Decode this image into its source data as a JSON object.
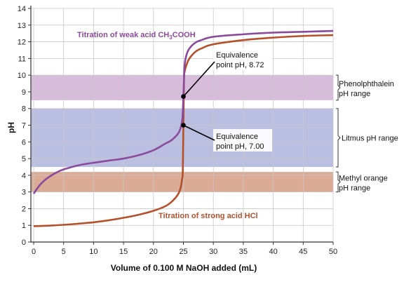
{
  "chart_data": {
    "type": "line",
    "xlabel": "Volume of 0.100 M NaOH added (mL)",
    "ylabel": "pH",
    "xlim": [
      0,
      50
    ],
    "ylim": [
      0,
      14
    ],
    "xticks": [
      "0",
      "5",
      "10",
      "15",
      "20",
      "25",
      "30",
      "35",
      "40",
      "45",
      "50"
    ],
    "yticks": [
      "0",
      "1",
      "2",
      "3",
      "4",
      "5",
      "6",
      "7",
      "8",
      "9",
      "10",
      "11",
      "12",
      "13",
      "14"
    ],
    "grid": true,
    "colors": {
      "weak": "#8b4a9c",
      "strong": "#b5502a",
      "phenol_band": "#c9a6cf",
      "litmus_band": "#a3aad8",
      "methyl_band": "#cf8f73",
      "grid": "#c8c8c8",
      "axis": "#333333"
    },
    "ranges": [
      {
        "id": "phenolphthalein",
        "label_line1": "Phenolphthalein",
        "label_line2": "pH range",
        "low": 8.5,
        "high": 10
      },
      {
        "id": "litmus",
        "label_line1": "Litmus pH range",
        "label_line2": "",
        "low": 4.5,
        "high": 8
      },
      {
        "id": "methyl",
        "label_line1": "Methyl orange",
        "label_line2": "pH range",
        "low": 3,
        "high": 4.2
      }
    ],
    "series": [
      {
        "id": "weak",
        "label_main": "Titration of weak acid CH",
        "label_sub": "3",
        "label_tail": "COOH",
        "x": [
          0,
          1,
          2,
          3,
          4,
          5,
          7.5,
          10,
          12.5,
          15,
          17.5,
          20,
          22,
          23,
          24,
          24.5,
          24.8,
          24.9,
          25,
          25.1,
          25.2,
          25.5,
          26,
          27,
          28,
          30,
          35,
          40,
          45,
          50
        ],
        "y": [
          2.9,
          3.4,
          3.75,
          4.0,
          4.2,
          4.35,
          4.6,
          4.75,
          4.88,
          5.0,
          5.2,
          5.5,
          5.9,
          6.1,
          6.45,
          6.8,
          7.3,
          7.8,
          8.72,
          9.8,
          10.6,
          11.2,
          11.6,
          11.95,
          12.1,
          12.3,
          12.45,
          12.55,
          12.6,
          12.65
        ]
      },
      {
        "id": "strong",
        "label_main": "Titration of strong acid HCl",
        "label_sub": "",
        "label_tail": "",
        "x": [
          0,
          2.5,
          5,
          7.5,
          10,
          12.5,
          15,
          17.5,
          20,
          22,
          23,
          24,
          24.5,
          24.8,
          24.9,
          25,
          25.1,
          25.2,
          25.5,
          26,
          27,
          28,
          30,
          35,
          40,
          45,
          50
        ],
        "y": [
          0.95,
          0.98,
          1.03,
          1.1,
          1.18,
          1.3,
          1.45,
          1.63,
          1.87,
          2.15,
          2.4,
          2.8,
          3.2,
          3.8,
          4.3,
          7.0,
          9.7,
          10.2,
          10.6,
          11.0,
          11.4,
          11.6,
          11.85,
          12.1,
          12.25,
          12.35,
          12.4
        ]
      }
    ],
    "annotations": [
      {
        "id": "eq-weak",
        "line1": "Equivalence",
        "line2": "point pH, 8.72",
        "x": 25,
        "y": 8.72
      },
      {
        "id": "eq-strong",
        "line1": "Equivalence",
        "line2": "point pH, 7.00",
        "x": 25,
        "y": 7.0
      }
    ]
  }
}
